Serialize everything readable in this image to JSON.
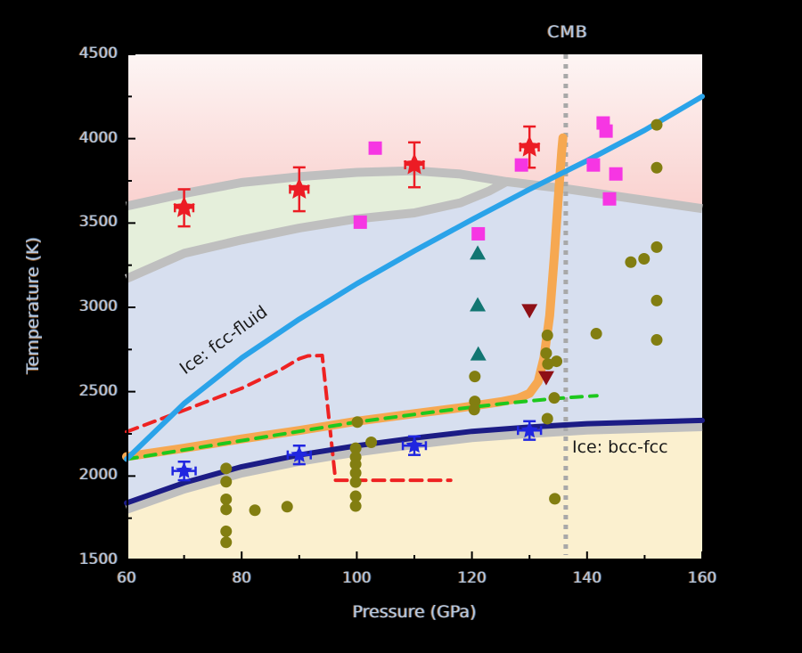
{
  "figure": {
    "background": "#000000",
    "cmb_label": "CMB",
    "xlabel": "Pressure (GPa)",
    "ylabel": "Temperature (K)",
    "label_fcc_fluid": "Ice: fcc-fluid",
    "label_bcc_fcc": "Ice: bcc-fcc"
  },
  "chart_data": {
    "type": "scatter",
    "title": "",
    "xlabel": "Pressure (GPa)",
    "ylabel": "Temperature (K)",
    "xlim": [
      60,
      160
    ],
    "ylim": [
      1500,
      4500
    ],
    "grid": false,
    "x_ticks_major": [
      60,
      80,
      100,
      120,
      140,
      160
    ],
    "x_ticks_minor": [
      70,
      90,
      110,
      130,
      150
    ],
    "y_ticks_major": [
      4500,
      4000,
      3500,
      3000,
      2500,
      2000,
      1500
    ],
    "y_ticks_minor": [
      4250,
      3750,
      3250,
      2750,
      2250,
      1750
    ],
    "cmb_line_x": 136.3,
    "annotations": [
      {
        "text": "CMB",
        "x": 136.3,
        "position": "above-top"
      },
      {
        "text": "Ice: fcc-fluid",
        "x": 76,
        "y": 2560,
        "rotation": -36
      },
      {
        "text": "Ice: bcc-fcc",
        "x": 137.5,
        "y": 2200,
        "rotation": 0
      }
    ],
    "regions": {
      "fluid_pink_top": "#fdf5f4",
      "fluid_pink_bottom": "#f8c2bf",
      "fcc_fluid_band": "#e5efdb",
      "fcc": "#d7dfef",
      "bcc": "#fbf0cf",
      "boundary_gray": "#bfbfbf",
      "cmb_dotted_gray": "#a8a8a8"
    },
    "boundaries": {
      "melt_upper": [
        [
          60,
          3600
        ],
        [
          70,
          3675
        ],
        [
          80,
          3740
        ],
        [
          90,
          3775
        ],
        [
          100,
          3800
        ],
        [
          110,
          3810
        ],
        [
          118,
          3790
        ],
        [
          126,
          3745
        ],
        [
          137,
          3700
        ],
        [
          148,
          3645
        ],
        [
          160,
          3585
        ]
      ],
      "melt_lower": [
        [
          60,
          3170
        ],
        [
          70,
          3320
        ],
        [
          80,
          3400
        ],
        [
          90,
          3470
        ],
        [
          100,
          3525
        ],
        [
          110,
          3560
        ],
        [
          118,
          3620
        ],
        [
          123,
          3690
        ],
        [
          126,
          3745
        ]
      ],
      "gray_under_navy": [
        [
          60,
          1805
        ],
        [
          70,
          1925
        ],
        [
          80,
          2020
        ],
        [
          90,
          2090
        ],
        [
          100,
          2145
        ],
        [
          110,
          2190
        ],
        [
          120,
          2230
        ],
        [
          130,
          2255
        ],
        [
          140,
          2275
        ],
        [
          150,
          2285
        ],
        [
          160,
          2295
        ]
      ]
    },
    "lines": [
      {
        "name": "red-dashed-line",
        "color": "#ee2222",
        "width": 4,
        "dash": "13 8",
        "points": [
          [
            60,
            2262
          ],
          [
            70,
            2390
          ],
          [
            80,
            2520
          ],
          [
            87,
            2635
          ],
          [
            90,
            2695
          ],
          [
            91.5,
            2712
          ],
          [
            94,
            2715
          ],
          [
            96.3,
            1975
          ],
          [
            116.3,
            1975
          ]
        ]
      },
      {
        "name": "navy-bcc-fcc-line",
        "color": "#1c1c85",
        "width": 6,
        "points": [
          [
            60,
            1840
          ],
          [
            70,
            1960
          ],
          [
            80,
            2055
          ],
          [
            90,
            2125
          ],
          [
            100,
            2180
          ],
          [
            110,
            2225
          ],
          [
            120,
            2265
          ],
          [
            130,
            2290
          ],
          [
            140,
            2310
          ],
          [
            150,
            2320
          ],
          [
            160,
            2330
          ]
        ]
      },
      {
        "name": "orange-fcc-fluid-line",
        "color": "#f6a851",
        "width": 10,
        "points": [
          [
            60,
            2115
          ],
          [
            70,
            2165
          ],
          [
            80,
            2220
          ],
          [
            90,
            2270
          ],
          [
            100,
            2325
          ],
          [
            110,
            2370
          ],
          [
            118,
            2405
          ],
          [
            125,
            2440
          ],
          [
            128,
            2460
          ],
          [
            130,
            2490
          ],
          [
            131.5,
            2560
          ],
          [
            132.5,
            2700
          ],
          [
            133.5,
            2950
          ],
          [
            134.3,
            3300
          ],
          [
            135,
            3650
          ],
          [
            135.6,
            3930
          ],
          [
            135.8,
            4005
          ]
        ]
      },
      {
        "name": "green-dashed-line",
        "color": "#1dc81d",
        "width": 4,
        "dash": "12 9",
        "points": [
          [
            60,
            2100
          ],
          [
            70,
            2155
          ],
          [
            80,
            2210
          ],
          [
            90,
            2265
          ],
          [
            100,
            2320
          ],
          [
            110,
            2365
          ],
          [
            118,
            2400
          ],
          [
            125,
            2428
          ],
          [
            130,
            2445
          ],
          [
            134,
            2458
          ],
          [
            138,
            2468
          ],
          [
            141.7,
            2476
          ]
        ]
      },
      {
        "name": "blue-isentrope-line",
        "color": "#2aa3e9",
        "width": 6,
        "points": [
          [
            60,
            2100
          ],
          [
            70,
            2430
          ],
          [
            80,
            2700
          ],
          [
            90,
            2930
          ],
          [
            100,
            3140
          ],
          [
            110,
            3335
          ],
          [
            120,
            3520
          ],
          [
            130,
            3700
          ],
          [
            140,
            3870
          ],
          [
            150,
            4050
          ],
          [
            160,
            4250
          ]
        ]
      }
    ],
    "series": [
      {
        "name": "red-star",
        "marker": "star",
        "color": "#ec1c24",
        "size": 13,
        "xerr": 1.6,
        "points": [
          [
            70,
            3590,
            110
          ],
          [
            90,
            3700,
            130
          ],
          [
            110,
            3845,
            133
          ],
          [
            130,
            3950,
            122
          ]
        ]
      },
      {
        "name": "blue-star",
        "marker": "star",
        "color": "#2026e0",
        "size": 10,
        "xerr": 2,
        "points": [
          [
            70,
            2030,
            55
          ],
          [
            90,
            2125,
            55
          ],
          [
            110,
            2180,
            55
          ],
          [
            130,
            2270,
            55
          ]
        ]
      },
      {
        "name": "magenta-square",
        "marker": "square",
        "color": "#f636e3",
        "size": 15,
        "points": [
          [
            103.2,
            3944
          ],
          [
            100.6,
            3505
          ],
          [
            121.1,
            3436
          ],
          [
            128.6,
            3844
          ],
          [
            141.1,
            3844
          ],
          [
            142.8,
            4093
          ],
          [
            143.3,
            4045
          ],
          [
            145,
            3791
          ],
          [
            143.9,
            3643
          ]
        ]
      },
      {
        "name": "olive-circle",
        "marker": "circle",
        "color": "#827e11",
        "size": 13,
        "points": [
          [
            77.3,
            2045
          ],
          [
            77.3,
            1966
          ],
          [
            77.3,
            1862
          ],
          [
            77.3,
            1802
          ],
          [
            77.3,
            1672
          ],
          [
            77.3,
            1607
          ],
          [
            82.3,
            1797
          ],
          [
            87.9,
            1818
          ],
          [
            100.1,
            2320
          ],
          [
            102.5,
            2200
          ],
          [
            99.8,
            2165
          ],
          [
            99.8,
            2112
          ],
          [
            99.8,
            2070
          ],
          [
            99.8,
            2018
          ],
          [
            99.8,
            1964
          ],
          [
            99.8,
            1880
          ],
          [
            99.8,
            1822
          ],
          [
            120.5,
            2590
          ],
          [
            120.5,
            2442
          ],
          [
            120.4,
            2394
          ],
          [
            133.1,
            2834
          ],
          [
            132.9,
            2728
          ],
          [
            133.2,
            2664
          ],
          [
            134.7,
            2680
          ],
          [
            134.3,
            2463
          ],
          [
            133.1,
            2340
          ],
          [
            134.4,
            1865
          ],
          [
            141.6,
            2844
          ],
          [
            147.6,
            3268
          ],
          [
            149.9,
            3288
          ],
          [
            152.1,
            4082
          ],
          [
            152.1,
            3828
          ],
          [
            152.1,
            3357
          ],
          [
            152.1,
            3040
          ],
          [
            152.1,
            2807
          ]
        ]
      },
      {
        "name": "teal-triangle-up",
        "marker": "triangle-up",
        "color": "#127672",
        "size": 16,
        "points": [
          [
            121,
            3320
          ],
          [
            121,
            3013
          ],
          [
            121.1,
            2722
          ]
        ]
      },
      {
        "name": "darkred-triangle-down",
        "marker": "triangle-down",
        "color": "#8f1016",
        "size": 16,
        "points": [
          [
            130,
            2982
          ],
          [
            132.9,
            2585
          ]
        ]
      }
    ]
  }
}
